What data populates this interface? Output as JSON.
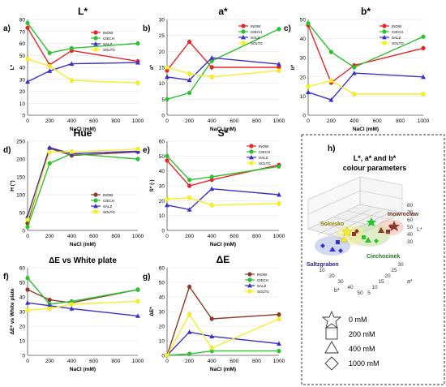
{
  "figure": {
    "xlabel_common": "NaCl (mM)",
    "legend_series": [
      "INOW",
      "CIECH",
      "SALZ",
      "SOLTG"
    ],
    "series_colors": {
      "INOW": "#e8232a",
      "CIECH": "#2ec12e",
      "SALZ": "#3b31c9",
      "SOLTG": "#f5ef2a"
    },
    "alt_colors_d_f_g": {
      "INOW": "#8b3a2a",
      "CIECH": "#2ec12e",
      "SALZ": "#3b31c9",
      "SOLTG": "#f5ef2a"
    },
    "panel_h": {
      "panel_label": "h)",
      "title_line1": "L*, a* and b*",
      "title_line2": "colour parameters",
      "clusters": [
        "Inowroclaw",
        "Solnisko",
        "Ciechocinek",
        "Saltzgraben"
      ],
      "axis_b_label": "b*",
      "axis_a_label": "a*",
      "axis_l_label": "L*",
      "b_ticks": [
        "10",
        "20",
        "30",
        "40",
        "50"
      ],
      "a_ticks": [
        "5",
        "10",
        "15",
        "20",
        "25",
        "30"
      ],
      "l_ticks": [
        "30",
        "40",
        "50",
        "60",
        "70",
        "80"
      ],
      "shape_legend": [
        "0 mM",
        "200 mM",
        "400 mM",
        "1000 mM"
      ]
    }
  },
  "chart_data": [
    {
      "id": "a",
      "panel_label": "a)",
      "title": "L*",
      "type": "line",
      "ylabel": "L*",
      "xlabel": "NaCl (mM)",
      "x": [
        0,
        200,
        400,
        1000
      ],
      "xticks": [
        0,
        200,
        400,
        600,
        800,
        1000
      ],
      "ylim": [
        0,
        80
      ],
      "yticks": [
        0,
        10,
        20,
        30,
        40,
        50,
        60,
        70,
        80
      ],
      "legend": true,
      "legend_labels": [
        "INOW",
        "CIECH",
        "SALZ",
        "SOLTG"
      ],
      "series": [
        {
          "name": "INOW",
          "color": "#e8232a",
          "values": [
            73,
            42,
            54,
            45
          ]
        },
        {
          "name": "CIECH",
          "color": "#2ec12e",
          "values": [
            77,
            52,
            56,
            60
          ]
        },
        {
          "name": "SALZ",
          "color": "#3b31c9",
          "values": [
            28,
            37,
            43,
            44
          ]
        },
        {
          "name": "SOLTG",
          "color": "#f5ef2a",
          "values": [
            47,
            41,
            29,
            27
          ]
        }
      ]
    },
    {
      "id": "b",
      "panel_label": "b)",
      "title": "a*",
      "type": "line",
      "ylabel": "a*",
      "xlabel": "NaCl (mM)",
      "x": [
        0,
        200,
        400,
        1000
      ],
      "xticks": [
        0,
        200,
        400,
        600,
        800,
        1000
      ],
      "ylim": [
        0,
        30
      ],
      "yticks": [
        0,
        5,
        10,
        15,
        20,
        25,
        30
      ],
      "legend": true,
      "legend_labels": [
        "INOW",
        "CIECH",
        "SALZ",
        "SOLTG"
      ],
      "series": [
        {
          "name": "INOW",
          "color": "#e8232a",
          "values": [
            14,
            23,
            15,
            15
          ]
        },
        {
          "name": "CIECH",
          "color": "#2ec12e",
          "values": [
            5,
            7,
            17,
            27
          ]
        },
        {
          "name": "SALZ",
          "color": "#3b31c9",
          "values": [
            12,
            11,
            18,
            16
          ]
        },
        {
          "name": "SOLTG",
          "color": "#f5ef2a",
          "values": [
            15,
            13,
            12,
            14
          ]
        }
      ]
    },
    {
      "id": "c",
      "panel_label": "c)",
      "title": "b*",
      "type": "line",
      "ylabel": "b*",
      "xlabel": "NaCl (mM)",
      "x": [
        0,
        200,
        400,
        1000
      ],
      "xticks": [
        0,
        200,
        400,
        600,
        800,
        1000
      ],
      "ylim": [
        0,
        50
      ],
      "yticks": [
        0,
        10,
        20,
        30,
        40,
        50
      ],
      "legend": true,
      "legend_labels": [
        "INOW",
        "CIECH",
        "SALZ",
        "SOLTG"
      ],
      "series": [
        {
          "name": "INOW",
          "color": "#e8232a",
          "values": [
            47,
            17,
            26,
            35
          ]
        },
        {
          "name": "CIECH",
          "color": "#2ec12e",
          "values": [
            48,
            33,
            25,
            41
          ]
        },
        {
          "name": "SALZ",
          "color": "#3b31c9",
          "values": [
            12,
            8,
            22,
            20
          ]
        },
        {
          "name": "SOLTG",
          "color": "#f5ef2a",
          "values": [
            15,
            18,
            11,
            11
          ]
        }
      ]
    },
    {
      "id": "d",
      "panel_label": "d)",
      "title": "Hue",
      "type": "line",
      "ylabel": "H (°)",
      "xlabel": "NaCl (mM)",
      "x": [
        0,
        200,
        400,
        1000
      ],
      "xticks": [
        0,
        200,
        400,
        600,
        800,
        1000
      ],
      "ylim": [
        0,
        250
      ],
      "yticks": [
        0,
        50,
        100,
        150,
        200,
        250
      ],
      "legend": true,
      "legend_labels": [
        "INOW",
        "CIECH",
        "SALZ",
        "SOLTG"
      ],
      "series": [
        {
          "name": "INOW",
          "color": "#8b3a2a",
          "values": [
            20,
            230,
            210,
            220
          ]
        },
        {
          "name": "CIECH",
          "color": "#2ec12e",
          "values": [
            10,
            188,
            215,
            200
          ]
        },
        {
          "name": "SALZ",
          "color": "#3b31c9",
          "values": [
            40,
            232,
            215,
            222
          ]
        },
        {
          "name": "SOLTG",
          "color": "#f5ef2a",
          "values": [
            30,
            220,
            220,
            228
          ]
        }
      ]
    },
    {
      "id": "e",
      "panel_label": "e)",
      "title": "S*",
      "type": "line",
      "ylabel": "S* (-)",
      "xlabel": "NaCl (mM)",
      "x": [
        0,
        200,
        400,
        1000
      ],
      "xticks": [
        0,
        200,
        400,
        600,
        800,
        1000
      ],
      "ylim": [
        0,
        60
      ],
      "yticks": [
        0,
        10,
        20,
        30,
        40,
        50,
        60
      ],
      "legend": true,
      "legend_labels": [
        "INOW",
        "CIECH",
        "SALZ",
        "SOLTG"
      ],
      "series": [
        {
          "name": "INOW",
          "color": "#e8232a",
          "values": [
            47,
            30,
            34,
            44
          ]
        },
        {
          "name": "CIECH",
          "color": "#2ec12e",
          "values": [
            50,
            34,
            36,
            43
          ]
        },
        {
          "name": "SALZ",
          "color": "#3b31c9",
          "values": [
            17,
            14,
            28,
            24
          ]
        },
        {
          "name": "SOLTG",
          "color": "#f5ef2a",
          "values": [
            21,
            22,
            17,
            18
          ]
        }
      ]
    },
    {
      "id": "f",
      "panel_label": "f)",
      "title": "ΔE vs White plate",
      "type": "line",
      "ylabel": "ΔE* vs White plate",
      "xlabel": "NaCl (mM)",
      "x": [
        0,
        200,
        400,
        1000
      ],
      "xticks": [
        0,
        200,
        400,
        600,
        800,
        1000
      ],
      "ylim": [
        0,
        60
      ],
      "yticks": [
        0,
        10,
        20,
        30,
        40,
        50,
        60
      ],
      "legend": false,
      "legend_labels": [
        "INOW",
        "CIECH",
        "SALZ",
        "SOLTG"
      ],
      "series": [
        {
          "name": "INOW",
          "color": "#8b3a2a",
          "values": [
            45,
            38,
            36,
            45
          ]
        },
        {
          "name": "CIECH",
          "color": "#2ec12e",
          "values": [
            53,
            35,
            37,
            45
          ]
        },
        {
          "name": "SALZ",
          "color": "#3b31c9",
          "values": [
            36,
            34,
            32,
            27
          ]
        },
        {
          "name": "SOLTG",
          "color": "#f5ef2a",
          "values": [
            31,
            32,
            35,
            37
          ]
        }
      ]
    },
    {
      "id": "g",
      "panel_label": "g)",
      "title": "ΔE",
      "type": "line",
      "ylabel": "ΔE*",
      "xlabel": "NaCl (mM)",
      "x": [
        0,
        200,
        400,
        1000
      ],
      "xticks": [
        0,
        200,
        400,
        600,
        800,
        1000
      ],
      "ylim": [
        0,
        60
      ],
      "yticks": [
        0,
        10,
        20,
        30,
        40,
        50,
        60
      ],
      "legend": true,
      "legend_labels": [
        "INOW",
        "CIECH",
        "SALZ",
        "SOLTG"
      ],
      "series": [
        {
          "name": "INOW",
          "color": "#8b3a2a",
          "values": [
            0,
            47,
            25,
            28
          ]
        },
        {
          "name": "CIECH",
          "color": "#2ec12e",
          "values": [
            0,
            1,
            3,
            3
          ]
        },
        {
          "name": "SALZ",
          "color": "#3b31c9",
          "values": [
            0,
            16,
            13,
            8
          ]
        },
        {
          "name": "SOLTG",
          "color": "#f5ef2a",
          "values": [
            0,
            28,
            5,
            25
          ]
        }
      ]
    }
  ]
}
